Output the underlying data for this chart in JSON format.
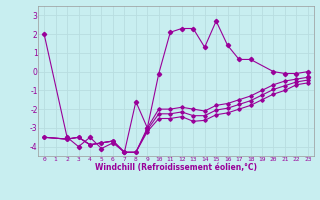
{
  "xlabel": "Windchill (Refroidissement éolien,°C)",
  "xlim": [
    -0.5,
    23.5
  ],
  "ylim": [
    -4.5,
    3.5
  ],
  "yticks": [
    -4,
    -3,
    -2,
    -1,
    0,
    1,
    2,
    3
  ],
  "xticks": [
    0,
    1,
    2,
    3,
    4,
    5,
    6,
    7,
    8,
    9,
    10,
    11,
    12,
    13,
    14,
    15,
    16,
    17,
    18,
    19,
    20,
    21,
    22,
    23
  ],
  "line_color": "#990099",
  "bg_color": "#c8eef0",
  "grid_color": "#b8dde0",
  "series_main": [
    2,
    -3.5,
    -4.0,
    -3.5,
    -4.1,
    -3.8,
    -4.3,
    -1.6,
    -3.0,
    -0.1,
    2.1,
    2.3,
    2.3,
    1.3,
    2.7,
    1.4,
    0.65,
    0.65,
    0.0,
    -0.1,
    -0.1,
    0.0,
    -0.3
  ],
  "series_main_x": [
    0,
    2,
    3,
    4,
    5,
    6,
    7,
    8,
    9,
    10,
    11,
    12,
    13,
    14,
    15,
    16,
    17,
    18,
    20,
    21,
    22,
    23,
    23
  ],
  "series2_x": [
    0,
    2,
    3,
    4,
    5,
    6,
    7,
    8,
    9,
    10,
    11,
    12,
    13,
    14,
    15,
    16,
    17,
    18,
    19,
    20,
    21,
    22,
    23
  ],
  "series2_y": [
    -3.5,
    -3.6,
    -3.5,
    -3.9,
    -3.8,
    -3.7,
    -4.3,
    -4.3,
    -3.0,
    -2.0,
    -2.0,
    -1.9,
    -2.0,
    -2.1,
    -1.8,
    -1.7,
    -1.5,
    -1.3,
    -1.0,
    -0.7,
    -0.5,
    -0.4,
    -0.3
  ],
  "series3_x": [
    0,
    2,
    3,
    4,
    5,
    6,
    7,
    8,
    9,
    10,
    11,
    12,
    13,
    14,
    15,
    16,
    17,
    18,
    19,
    20,
    21,
    22,
    23
  ],
  "series3_y": [
    -3.5,
    -3.6,
    -3.5,
    -3.9,
    -3.8,
    -3.7,
    -4.3,
    -4.3,
    -3.1,
    -2.25,
    -2.25,
    -2.15,
    -2.35,
    -2.35,
    -2.05,
    -1.95,
    -1.75,
    -1.55,
    -1.25,
    -0.95,
    -0.75,
    -0.55,
    -0.45
  ],
  "series4_x": [
    0,
    2,
    3,
    4,
    5,
    6,
    7,
    8,
    9,
    10,
    11,
    12,
    13,
    14,
    15,
    16,
    17,
    18,
    19,
    20,
    21,
    22,
    23
  ],
  "series4_y": [
    -3.5,
    -3.6,
    -3.5,
    -3.9,
    -3.8,
    -3.7,
    -4.3,
    -4.3,
    -3.2,
    -2.5,
    -2.5,
    -2.4,
    -2.65,
    -2.6,
    -2.3,
    -2.2,
    -2.0,
    -1.8,
    -1.5,
    -1.2,
    -1.0,
    -0.7,
    -0.6
  ]
}
